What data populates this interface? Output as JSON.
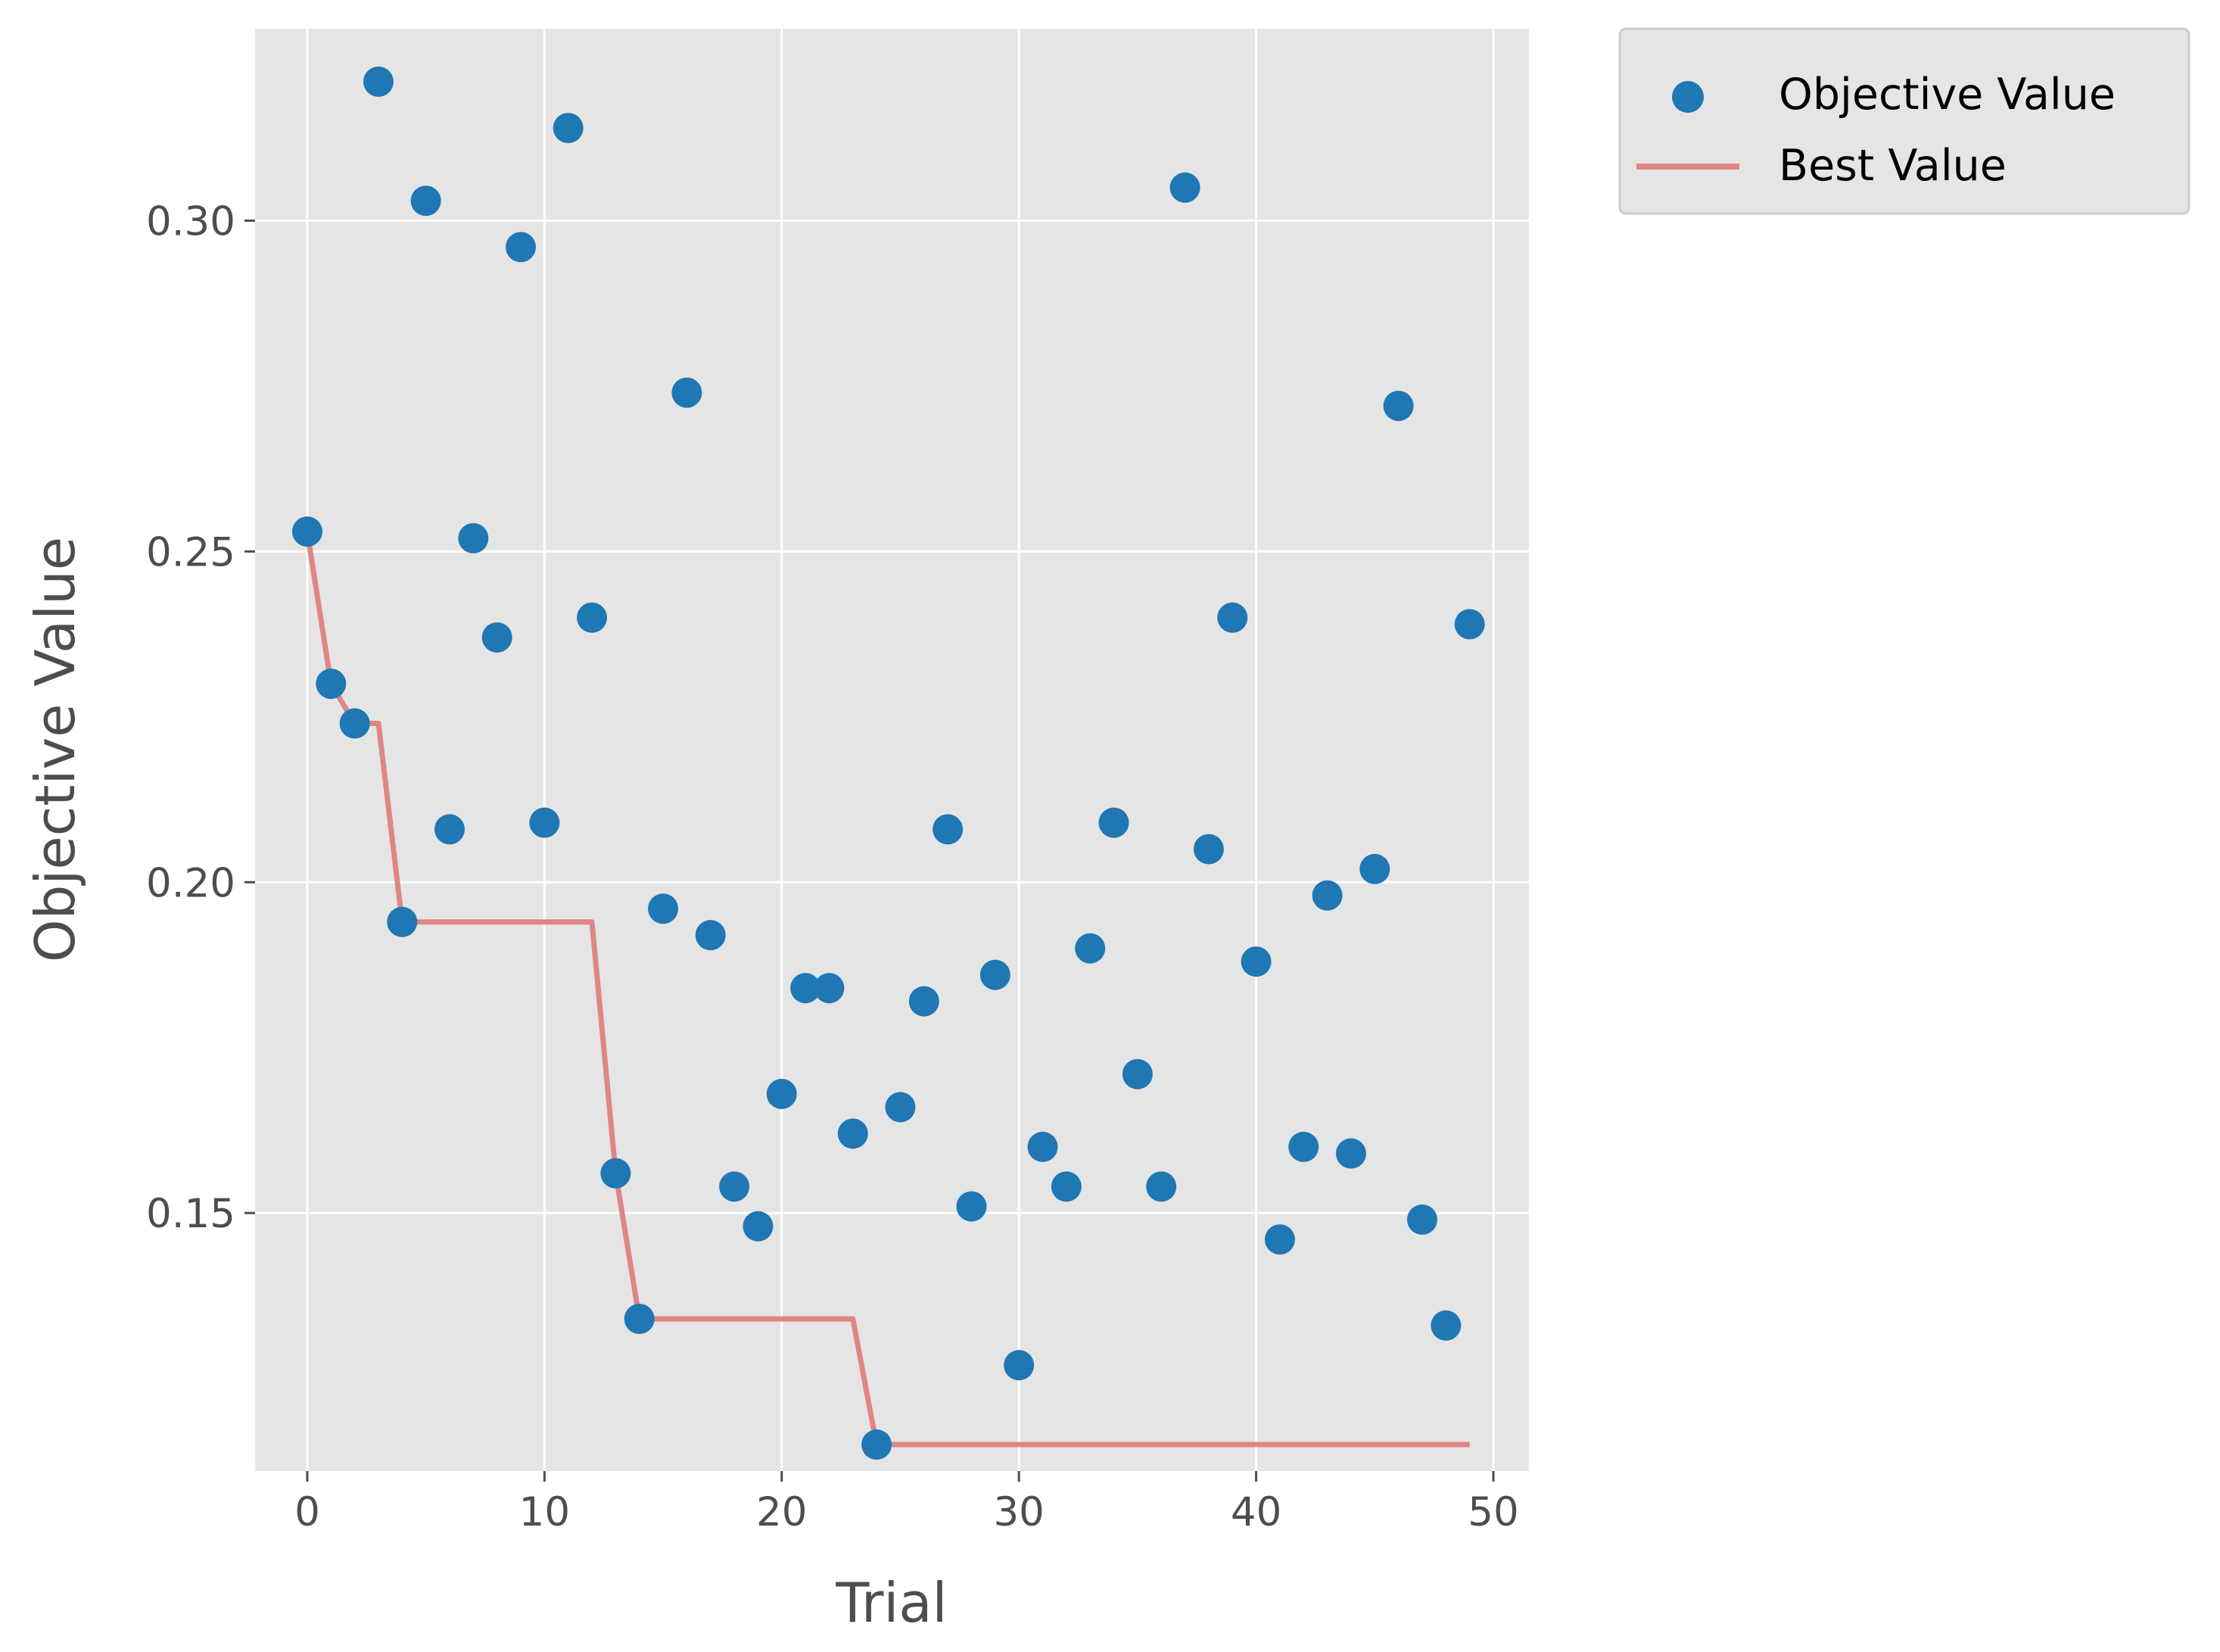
{
  "chart_data": {
    "type": "scatter",
    "xlabel": "Trial",
    "ylabel": "Objective Value",
    "xlim": [
      -2.2,
      51.5
    ],
    "ylim": [
      0.111,
      0.329
    ],
    "x_ticks": [
      0,
      10,
      20,
      30,
      40,
      50
    ],
    "x_tick_labels": [
      "0",
      "10",
      "20",
      "30",
      "40",
      "50"
    ],
    "y_ticks": [
      0.15,
      0.2,
      0.25,
      0.3
    ],
    "y_tick_labels": [
      "0.15",
      "0.20",
      "0.25",
      "0.30"
    ],
    "grid": true,
    "legend_position": "outside-top-right",
    "colors": {
      "panel_background": "#e5e5e5",
      "grid": "#ffffff",
      "scatter": "#1f77b4",
      "best_line": "#e08585",
      "text": "#4d4d4d"
    },
    "series": [
      {
        "name": "Objective Value",
        "kind": "scatter",
        "x": [
          0,
          1,
          2,
          3,
          4,
          5,
          6,
          7,
          8,
          9,
          10,
          11,
          12,
          13,
          14,
          15,
          16,
          17,
          18,
          19,
          20,
          21,
          22,
          23,
          24,
          25,
          26,
          27,
          28,
          29,
          30,
          31,
          32,
          33,
          34,
          35,
          36,
          37,
          38,
          39,
          40,
          41,
          42,
          43,
          44,
          45,
          46,
          47,
          48,
          49
        ],
        "y": [
          0.253,
          0.23,
          0.224,
          0.321,
          0.194,
          0.303,
          0.208,
          0.252,
          0.237,
          0.296,
          0.209,
          0.314,
          0.24,
          0.156,
          0.134,
          0.196,
          0.274,
          0.192,
          0.154,
          0.148,
          0.168,
          0.184,
          0.184,
          0.162,
          0.115,
          0.166,
          0.182,
          0.208,
          0.151,
          0.186,
          0.127,
          0.16,
          0.154,
          0.19,
          0.209,
          0.171,
          0.154,
          0.305,
          0.205,
          0.24,
          0.188,
          0.146,
          0.16,
          0.198,
          0.159,
          0.202,
          0.272,
          0.149,
          0.133,
          0.239
        ]
      },
      {
        "name": "Best Value",
        "kind": "line",
        "x": [
          0,
          1,
          2,
          3,
          4,
          5,
          6,
          7,
          8,
          9,
          10,
          11,
          12,
          13,
          14,
          15,
          16,
          17,
          18,
          19,
          20,
          21,
          22,
          23,
          24,
          25,
          26,
          27,
          28,
          29,
          30,
          31,
          32,
          33,
          34,
          35,
          36,
          37,
          38,
          39,
          40,
          41,
          42,
          43,
          44,
          45,
          46,
          47,
          48,
          49
        ],
        "y": [
          0.253,
          0.23,
          0.224,
          0.224,
          0.194,
          0.194,
          0.194,
          0.194,
          0.194,
          0.194,
          0.194,
          0.194,
          0.194,
          0.156,
          0.134,
          0.134,
          0.134,
          0.134,
          0.134,
          0.134,
          0.134,
          0.134,
          0.134,
          0.134,
          0.115,
          0.115,
          0.115,
          0.115,
          0.115,
          0.115,
          0.115,
          0.115,
          0.115,
          0.115,
          0.115,
          0.115,
          0.115,
          0.115,
          0.115,
          0.115,
          0.115,
          0.115,
          0.115,
          0.115,
          0.115,
          0.115,
          0.115,
          0.115,
          0.115,
          0.115
        ]
      }
    ]
  }
}
